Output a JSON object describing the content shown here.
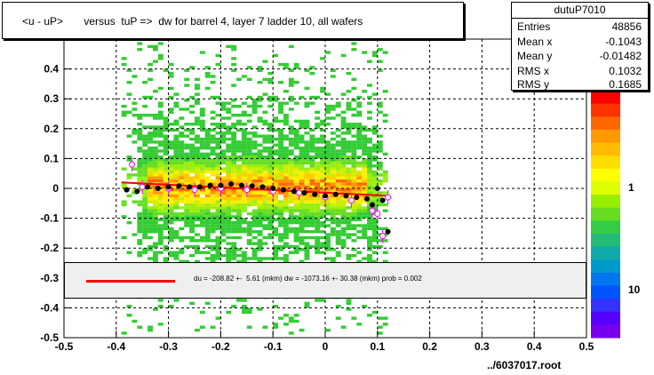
{
  "title": "<u - uP>       versus  tuP =>  dw for barrel 4, layer 7 ladder 10, all wafers",
  "stats": {
    "name": "dutuP7010",
    "rows": [
      {
        "label": "Entries",
        "value": "48856"
      },
      {
        "label": "Mean x",
        "value": "-0.1043"
      },
      {
        "label": "Mean y",
        "value": "-0.01482"
      },
      {
        "label": "RMS x",
        "value": "0.1032"
      },
      {
        "label": "RMS y",
        "value": "0.1685"
      }
    ]
  },
  "fit_text": "du = -208.82 +-  5.61 (mkm) dw = -1073.16 +- 30.38 (mkm) prob = 0.002",
  "footer": "../6037017.root",
  "colors": {
    "fit_line": "#ff0000",
    "profile_black": "#000000",
    "profile_magenta": "#ff00ff",
    "grid": "#000000"
  },
  "chart_data": {
    "type": "heatmap",
    "title": "<u - uP>       versus  tuP =>  dw for barrel 4, layer 7 ladder 10, all wafers",
    "xlim": [
      -0.5,
      0.5
    ],
    "ylim": [
      -0.5,
      0.5
    ],
    "x_ticks": [
      "-0.5",
      "-0.4",
      "-0.3",
      "-0.2",
      "-0.1",
      "0",
      "0.1",
      "0.2",
      "0.3",
      "0.4",
      "0.5"
    ],
    "y_ticks": [
      "-0.5",
      "-0.4",
      "-0.3",
      "-0.2",
      "-0.1",
      "0",
      "0.1",
      "0.2",
      "0.3",
      "0.4"
    ],
    "z_ticks": [
      "1",
      "10"
    ],
    "z_scale": "log",
    "grid": true,
    "data_x_range": [
      -0.39,
      0.12
    ],
    "profile_black": [
      {
        "x": -0.38,
        "y": -0.005
      },
      {
        "x": -0.36,
        "y": -0.01
      },
      {
        "x": -0.34,
        "y": 0.005
      },
      {
        "x": -0.32,
        "y": 0.0
      },
      {
        "x": -0.3,
        "y": 0.005
      },
      {
        "x": -0.28,
        "y": 0.008
      },
      {
        "x": -0.26,
        "y": 0.005
      },
      {
        "x": -0.24,
        "y": 0.005
      },
      {
        "x": -0.22,
        "y": 0.01
      },
      {
        "x": -0.2,
        "y": 0.01
      },
      {
        "x": -0.18,
        "y": 0.015
      },
      {
        "x": -0.16,
        "y": 0.01
      },
      {
        "x": -0.14,
        "y": 0.008
      },
      {
        "x": -0.12,
        "y": 0.005
      },
      {
        "x": -0.1,
        "y": 0.0
      },
      {
        "x": -0.08,
        "y": -0.005
      },
      {
        "x": -0.06,
        "y": -0.01
      },
      {
        "x": -0.04,
        "y": -0.015
      },
      {
        "x": -0.02,
        "y": -0.02
      },
      {
        "x": 0.0,
        "y": -0.025
      },
      {
        "x": 0.02,
        "y": -0.02
      },
      {
        "x": 0.04,
        "y": -0.025
      },
      {
        "x": 0.06,
        "y": -0.03
      },
      {
        "x": 0.08,
        "y": -0.035
      },
      {
        "x": 0.09,
        "y": -0.055
      },
      {
        "x": 0.1,
        "y": 0.0
      },
      {
        "x": 0.11,
        "y": -0.04
      },
      {
        "x": 0.12,
        "y": -0.145
      }
    ],
    "profile_magenta": [
      {
        "x": -0.37,
        "y": 0.08
      },
      {
        "x": -0.35,
        "y": 0.005
      },
      {
        "x": -0.3,
        "y": 0.0
      },
      {
        "x": -0.25,
        "y": -0.005
      },
      {
        "x": -0.2,
        "y": 0.0
      },
      {
        "x": -0.15,
        "y": -0.005
      },
      {
        "x": -0.1,
        "y": -0.01
      },
      {
        "x": -0.05,
        "y": -0.015
      },
      {
        "x": 0.0,
        "y": -0.03
      },
      {
        "x": 0.05,
        "y": -0.04
      },
      {
        "x": 0.09,
        "y": -0.075
      },
      {
        "x": 0.1,
        "y": -0.085
      },
      {
        "x": 0.12,
        "y": -0.03
      },
      {
        "x": 0.11,
        "y": -0.16
      }
    ],
    "fit_line": {
      "x": [
        -0.39,
        0.12
      ],
      "y": [
        0.02,
        -0.025
      ]
    }
  }
}
